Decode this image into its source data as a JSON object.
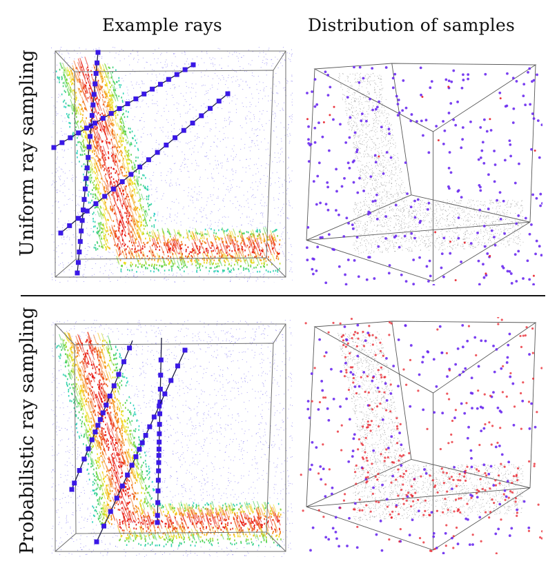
{
  "columns": {
    "left_title": "Example rays",
    "right_title": "Distribution of samples"
  },
  "rows": {
    "top_label": "Uniform ray sampling",
    "bottom_label": "Probabilistic ray sampling"
  },
  "colors": {
    "ray": "#3a18e6",
    "sample_purple": "#6b2bf0",
    "sample_red": "#e8202a",
    "surface": "#8a8a8a",
    "heat": [
      "#1c36e0",
      "#2fd3c8",
      "#4fd14a",
      "#f2e21a",
      "#f48a1a",
      "#e81a12"
    ]
  }
}
